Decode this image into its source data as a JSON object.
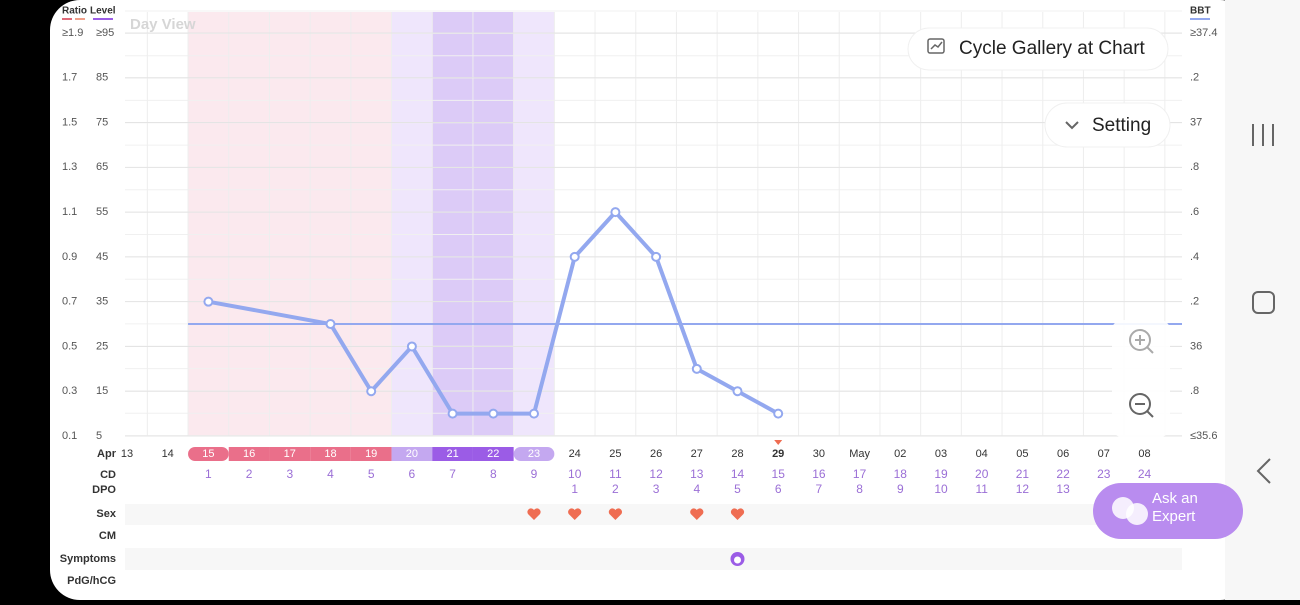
{
  "header": {
    "view": "Day View",
    "gallery_button": "Cycle Gallery at Chart",
    "setting_button": "Setting",
    "ask_expert": "Ask an Expert"
  },
  "chart_data": {
    "type": "line",
    "axis_titles": {
      "ratio": "Ratio",
      "level": "Level",
      "bbt": "BBT"
    },
    "month": "Apr",
    "categories": [
      "13",
      "14",
      "15",
      "16",
      "17",
      "18",
      "19",
      "20",
      "21",
      "22",
      "23",
      "24",
      "25",
      "26",
      "27",
      "28",
      "29",
      "30",
      "May",
      "02",
      "03",
      "04",
      "05",
      "06",
      "07",
      "08"
    ],
    "ratio_axis": {
      "lim": [
        0.1,
        1.9
      ],
      "ticks": [
        {
          "value": 1.9,
          "label": "≥1.9"
        },
        1.7,
        1.5,
        1.3,
        1.1,
        0.9,
        0.7,
        0.5,
        0.3,
        0.1
      ]
    },
    "level_axis": {
      "lim": [
        5,
        95
      ],
      "ticks": [
        {
          "value": 95,
          "label": "≥95"
        },
        85,
        75,
        65,
        55,
        45,
        35,
        25,
        15,
        5
      ]
    },
    "ylim": [
      35.6,
      37.4
    ],
    "yticks": [
      {
        "value": 37.4,
        "label": "≥37.4"
      },
      {
        "value": 37.2,
        "label": ".2"
      },
      37,
      {
        "value": 36.8,
        "label": ".8"
      },
      {
        "value": 36.6,
        "label": ".6"
      },
      {
        "value": 36.4,
        "label": ".4"
      },
      {
        "value": 36.2,
        "label": ".2"
      },
      36,
      {
        "value": 35.8,
        "label": ".8"
      },
      {
        "value": 35.6,
        "label": "≤35.6"
      }
    ],
    "coverline": 36.1,
    "series": [
      {
        "color": "#93a8ef",
        "x": [
          "15",
          "18",
          "19",
          "20",
          "21",
          "22",
          "23",
          "24",
          "25",
          "26",
          "27",
          "28",
          "29"
        ],
        "values": [
          36.2,
          36.1,
          35.8,
          36.0,
          35.7,
          35.7,
          35.7,
          36.4,
          36.6,
          36.4,
          35.9,
          35.8,
          35.7
        ]
      }
    ],
    "phase": [
      "none",
      "none",
      "period",
      "period",
      "period",
      "period",
      "period",
      "fertile",
      "ovulation",
      "ovulation",
      "fertile",
      "none",
      "none",
      "none",
      "none",
      "none",
      "none",
      "none",
      "none",
      "none",
      "none",
      "none",
      "none",
      "none",
      "none",
      "none"
    ],
    "today": "29",
    "row_labels": {
      "cd": "CD",
      "dpo": "DPO",
      "sex": "Sex",
      "cm": "CM",
      "symptoms": "Symptoms",
      "pdg": "PdG/hCG"
    },
    "cd": [
      null,
      null,
      1,
      2,
      3,
      4,
      5,
      6,
      7,
      8,
      9,
      10,
      11,
      12,
      13,
      14,
      15,
      16,
      17,
      18,
      19,
      20,
      21,
      22,
      23,
      24
    ],
    "dpo": [
      null,
      null,
      null,
      null,
      null,
      null,
      null,
      null,
      null,
      null,
      null,
      1,
      2,
      3,
      4,
      5,
      6,
      7,
      8,
      9,
      10,
      11,
      12,
      13,
      null,
      null
    ],
    "sex": [
      false,
      false,
      false,
      false,
      false,
      false,
      false,
      false,
      false,
      false,
      true,
      true,
      true,
      false,
      true,
      true,
      false,
      false,
      false,
      false,
      false,
      false,
      false,
      false,
      false,
      false
    ],
    "symptoms": [
      false,
      false,
      false,
      false,
      false,
      false,
      false,
      false,
      false,
      false,
      false,
      false,
      false,
      false,
      false,
      true,
      false,
      false,
      false,
      false,
      false,
      false,
      false,
      false,
      false,
      false
    ]
  }
}
